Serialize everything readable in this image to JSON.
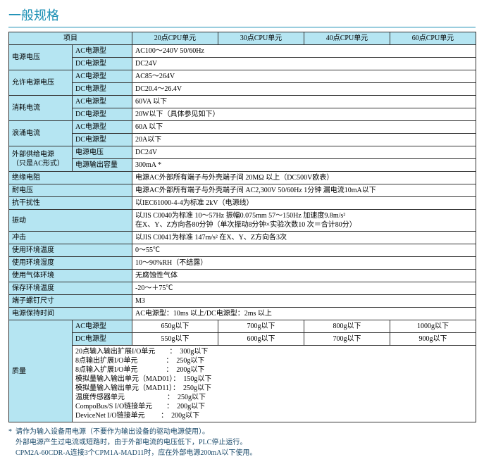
{
  "title": "一般规格",
  "headers": {
    "item": "项目",
    "c20": "20点CPU单元",
    "c30": "30点CPU单元",
    "c40": "40点CPU单元",
    "c60": "60点CPU单元"
  },
  "rows": {
    "psu_voltage": {
      "label": "电源电压",
      "ac_label": "AC电源型",
      "ac_val": "AC100～240V  50/60Hz",
      "dc_label": "DC电源型",
      "dc_val": "DC24V"
    },
    "allow_voltage": {
      "label": "允许电源电压",
      "ac_label": "AC电源型",
      "ac_val": "AC85～264V",
      "dc_label": "DC电源型",
      "dc_val": "DC20.4～26.4V"
    },
    "power_cons": {
      "label": "消耗电流",
      "ac_label": "AC电源型",
      "ac_val": "60VA 以下",
      "dc_label": "DC电源型",
      "dc_val": "20W以下（具体参见如下）"
    },
    "inrush": {
      "label": "浪涌电流",
      "ac_label": "AC电源型",
      "ac_val": "60A 以下",
      "dc_label": "DC电源型",
      "dc_val": "20A以下"
    },
    "ext_supply": {
      "label": "外部供给电源\n（只是AC形式）",
      "v_label": "电源电压",
      "v_val": "DC24V",
      "cap_label": "电源输出容量",
      "cap_val": "300mA  *"
    },
    "insulation": {
      "label": "绝缘电阻",
      "val": "电源AC外部所有端子与外壳端子间 20MΩ 以上（DC500V欧表）"
    },
    "dielectric": {
      "label": "耐电压",
      "val": "电源AC外部所有端子与外壳端子间  AC2,300V  50/60Hz 1分钟 漏电流10mA以下"
    },
    "noise": {
      "label": "抗干扰性",
      "val": "以IEC61000-4-4为标准  2kV（电源线）"
    },
    "vibration": {
      "label": "振动",
      "val": "以JIS C0040为标准  10～57Hz  振幅0.075mm  57～150Hz 加速度9.8m/s²\n在X、Y、Z方向各80分钟（单次振动8分钟×实验次数10 次＝合计80分）"
    },
    "shock": {
      "label": "冲击",
      "val": "以JIS C0041为标准  147m/s²  在X、Y、Z方向各3次"
    },
    "op_temp": {
      "label": "使用环境温度",
      "val": "0～55℃"
    },
    "op_hum": {
      "label": "使用环境湿度",
      "val": "10～90%RH（不结露）"
    },
    "atmosphere": {
      "label": "使用气体环境",
      "val": "无腐蚀性气体"
    },
    "storage_temp": {
      "label": "保存环境温度",
      "val": "-20～＋75℃"
    },
    "screw": {
      "label": "端子螺钉尺寸",
      "val": "M3"
    },
    "hold": {
      "label": "电源保持时间",
      "val": "AC电源型：10ms 以上/DC电源型：2ms 以上"
    },
    "mass": {
      "label": "质量",
      "ac_label": "AC电源型",
      "ac_vals": {
        "c20": "650g以下",
        "c30": "700g以下",
        "c40": "800g以下",
        "c60": "1000g以下"
      },
      "dc_label": "DC电源型",
      "dc_vals": {
        "c20": "550g以下",
        "c30": "600g以下",
        "c40": "700g以下",
        "c60": "900g以下"
      },
      "list_lines": [
        "20点输入输出扩展I/O单元　　：　300g以下",
        "8点输出扩展I/O单元　　　　：　250g以下",
        "8点输入扩展I/O单元　　　　：　200g以下",
        "模拟量输入输出单元（MAD01）：　150g以下",
        "模拟量输入输出单元（MAD11）：　250g以下",
        "温度传感器单元　　　　　　：　250g以下",
        "CompoBus/S I/O链接单元　　：　200g以下",
        "DeviceNet I/O链接单元　　 ：　200g以下"
      ]
    }
  },
  "footnotes": [
    "请作为输入设备用电源（不要作为输出设备的驱动电源使用）。",
    "外部电源产生过电流或短路时，由于外部电流的电压低下，PLC停止运行。",
    "CPM2A-60CDR-A连接3个CPM1A-MAD11时，应在外部电源200mA以下使用。"
  ],
  "colors": {
    "header_bg": "#b5e5f2",
    "title_color": "#1a8fb4"
  }
}
